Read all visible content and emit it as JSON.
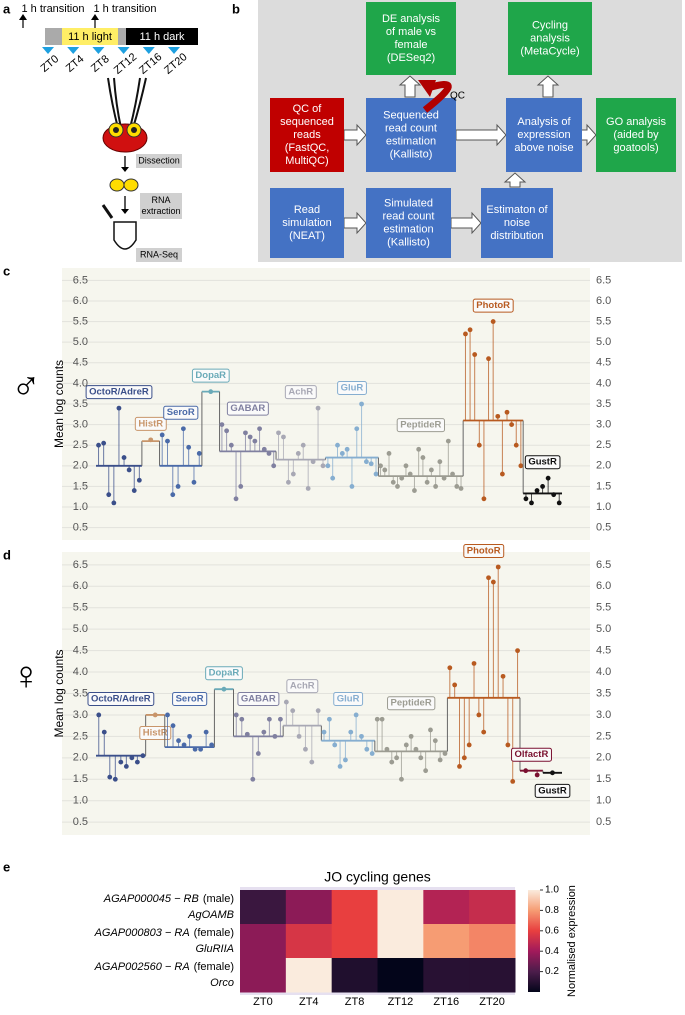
{
  "panel_labels": [
    "a",
    "b",
    "c",
    "d",
    "e"
  ],
  "diagram_a": {
    "transitions": [
      "1 h transition",
      "1 h transition"
    ],
    "light": "11 h light",
    "dark": "11 h dark",
    "timepoints": [
      "ZT0",
      "ZT4",
      "ZT8",
      "ZT12",
      "ZT16",
      "ZT20"
    ],
    "steps": [
      [
        "Dissection"
      ],
      [
        "RNA",
        "extraction"
      ],
      [
        "RNA-Seq"
      ]
    ]
  },
  "diagram_b": {
    "qc_label": "QC",
    "nodes": [
      {
        "lines": [
          "DE analysis",
          "of male vs",
          "female",
          "(DESeq2)"
        ],
        "color": "#1fa64a"
      },
      {
        "lines": [
          "Cycling",
          "analysis",
          "(MetaCycle)"
        ],
        "color": "#1fa64a"
      },
      {
        "lines": [
          "QC of",
          "sequenced",
          "reads",
          "(FastQC,",
          "MultiQC)"
        ],
        "color": "#c00000"
      },
      {
        "lines": [
          "Sequenced",
          "read count",
          "estimation",
          "(Kallisto)"
        ],
        "color": "#4472c4"
      },
      {
        "lines": [
          "Analysis of",
          "expression",
          "above noise"
        ],
        "color": "#4472c4"
      },
      {
        "lines": [
          "GO analysis",
          "(aided by",
          "goatools)"
        ],
        "color": "#1fa64a"
      },
      {
        "lines": [
          "Read",
          "simulation",
          "(NEAT)"
        ],
        "color": "#4472c4"
      },
      {
        "lines": [
          "Simulated",
          "read count",
          "estimation",
          "(Kallisto)"
        ],
        "color": "#4472c4"
      },
      {
        "lines": [
          "Estimaton of",
          "noise",
          "distribution"
        ],
        "color": "#4472c4"
      }
    ]
  },
  "chart_data": [
    {
      "type": "stem-groups",
      "symbol": "♂",
      "ylabel": "Mean log counts",
      "ylim": [
        0.2,
        6.8
      ],
      "grid": true,
      "yticks": [
        0.5,
        {
          "value": 1,
          "label": "1.0"
        },
        1.5,
        {
          "value": 2,
          "label": "2.0"
        },
        2.5,
        {
          "value": 3,
          "label": "3.0"
        },
        3.5,
        {
          "value": 4,
          "label": "4.0"
        },
        4.5,
        {
          "value": 5,
          "label": "5.0"
        },
        5.5,
        {
          "value": 6,
          "label": "6.0"
        },
        6.5
      ],
      "series": [
        {
          "name": "OctoR/AdreR",
          "color": "#3b4f8a",
          "mean": 2.0,
          "values": [
            2.5,
            2.55,
            1.3,
            1.1,
            3.4,
            2.2,
            1.9,
            1.4,
            1.65
          ]
        },
        {
          "name": "HistR",
          "color": "#c8956a",
          "mean": 2.6,
          "values": [
            2.63
          ]
        },
        {
          "name": "SeroR",
          "color": "#4a6aa8",
          "mean": 2.0,
          "values": [
            2.75,
            2.6,
            1.3,
            1.5,
            2.9,
            2.45,
            1.6,
            2.3
          ]
        },
        {
          "name": "DopaR",
          "color": "#6aaab8",
          "mean": 3.8,
          "values": [
            3.8
          ]
        },
        {
          "name": "GABAR",
          "color": "#8080a0",
          "mean": 2.35,
          "values": [
            3.0,
            2.85,
            2.5,
            1.2,
            1.5,
            2.8,
            2.7,
            2.6,
            2.9,
            2.4,
            2.3,
            2.0
          ]
        },
        {
          "name": "AchR",
          "color": "#a8a8b4",
          "mean": 2.15,
          "values": [
            2.8,
            2.7,
            1.6,
            1.8,
            2.3,
            2.5,
            1.45,
            2.1,
            3.4,
            2.0
          ]
        },
        {
          "name": "GluR",
          "color": "#86aed0",
          "mean": 2.2,
          "values": [
            2.0,
            1.7,
            2.5,
            2.3,
            2.4,
            1.5,
            2.9,
            3.5,
            2.1,
            2.05,
            1.8
          ]
        },
        {
          "name": "PeptideR",
          "color": "#9c9c92",
          "mean": 1.75,
          "values": [
            2.0,
            1.9,
            2.3,
            1.6,
            1.5,
            1.7,
            2.0,
            1.8,
            1.4,
            2.4,
            2.2,
            1.6,
            1.9,
            1.5,
            2.1,
            1.7,
            2.6,
            1.8,
            1.5,
            1.45
          ]
        },
        {
          "name": "PhotoR",
          "color": "#b85a20",
          "mean": 3.1,
          "values": [
            5.2,
            5.3,
            4.7,
            2.5,
            1.2,
            4.6,
            5.5,
            3.2,
            1.8,
            3.3,
            3.0,
            2.5,
            2.0
          ]
        },
        {
          "name": "GustR",
          "color": "#111111",
          "mean": 1.33,
          "values": [
            1.2,
            1.1,
            1.4,
            1.5,
            1.7,
            1.3,
            1.1
          ]
        }
      ]
    },
    {
      "type": "stem-groups",
      "symbol": "♀",
      "ylabel": "Mean log counts",
      "ylim": [
        0.2,
        6.8
      ],
      "grid": true,
      "yticks": [
        0.5,
        {
          "value": 1,
          "label": "1.0"
        },
        1.5,
        {
          "value": 2,
          "label": "2.0"
        },
        2.5,
        {
          "value": 3,
          "label": "3.0"
        },
        3.5,
        {
          "value": 4,
          "label": "4.0"
        },
        4.5,
        {
          "value": 5,
          "label": "5.0"
        },
        5.5,
        {
          "value": 6,
          "label": "6.0"
        },
        6.5
      ],
      "series": [
        {
          "name": "OctoR/AdreR",
          "color": "#3b4f8a",
          "mean": 2.05,
          "values": [
            3.0,
            2.6,
            1.55,
            1.5,
            1.9,
            1.8,
            2.0,
            1.9,
            2.05
          ]
        },
        {
          "name": "HistR",
          "color": "#c8956a",
          "mean": 3.0,
          "values": [
            3.0
          ]
        },
        {
          "name": "SeroR",
          "color": "#4a6aa8",
          "mean": 2.25,
          "values": [
            3.0,
            2.75,
            2.4,
            2.3,
            2.5,
            2.2,
            2.2,
            2.6,
            2.3
          ]
        },
        {
          "name": "DopaR",
          "color": "#6aaab8",
          "mean": 3.6,
          "values": [
            3.6
          ]
        },
        {
          "name": "GABAR",
          "color": "#8080a0",
          "mean": 2.5,
          "values": [
            3.0,
            2.9,
            2.55,
            1.5,
            2.1,
            2.6,
            2.9,
            2.5,
            2.9
          ]
        },
        {
          "name": "AchR",
          "color": "#a8a8b4",
          "mean": 2.75,
          "values": [
            3.3,
            3.1,
            2.5,
            2.2,
            1.9,
            3.1
          ]
        },
        {
          "name": "GluR",
          "color": "#86aed0",
          "mean": 2.4,
          "values": [
            2.6,
            2.9,
            2.3,
            1.8,
            1.95,
            2.6,
            3.0,
            2.5,
            2.2,
            2.1
          ]
        },
        {
          "name": "PeptideR",
          "color": "#9c9c92",
          "mean": 2.15,
          "values": [
            2.9,
            2.9,
            2.2,
            1.9,
            2.0,
            1.5,
            2.3,
            2.5,
            2.2,
            2.0,
            1.7,
            2.65,
            2.4,
            1.95,
            2.1
          ]
        },
        {
          "name": "PhotoR",
          "color": "#b85a20",
          "mean": 3.4,
          "values": [
            4.1,
            3.7,
            1.8,
            2.0,
            2.3,
            4.2,
            3.0,
            2.6,
            6.2,
            6.1,
            6.45,
            3.9,
            2.3,
            1.45,
            4.5
          ]
        },
        {
          "name": "OlfactR",
          "color": "#7a1030",
          "mean": 1.7,
          "values": [
            1.7,
            1.6
          ]
        },
        {
          "name": "GustR",
          "color": "#111111",
          "mean": 1.65,
          "values": [
            1.65
          ]
        }
      ]
    },
    {
      "type": "heatmap",
      "title": "JO cycling genes",
      "rows": [
        {
          "gene": "AGAP000045 − RB",
          "sex": "(male)",
          "name": "AgOAMB"
        },
        {
          "gene": "AGAP000803 − RA",
          "sex": "(female)",
          "name": "GluRIIA"
        },
        {
          "gene": "AGAP002560 − RA",
          "sex": "(female)",
          "name": "Orco"
        }
      ],
      "categories": [
        "ZT0",
        "ZT4",
        "ZT8",
        "ZT12",
        "ZT16",
        "ZT20"
      ],
      "values": [
        [
          0.15,
          0.35,
          0.6,
          1.0,
          0.45,
          0.5
        ],
        [
          0.35,
          0.55,
          0.6,
          1.0,
          0.8,
          0.75
        ],
        [
          0.35,
          1.0,
          0.08,
          0.0,
          0.1,
          0.1
        ]
      ],
      "colorbar_label": "Normalised expression",
      "clim": [
        0,
        1
      ],
      "cticks": [
        0.2,
        0.4,
        0.6,
        0.8,
        {
          "value": 1,
          "label": "1.0"
        }
      ],
      "colormap": [
        "#03051a",
        "#4c1d4b",
        "#a11a5b",
        "#e83f3f",
        "#f69c73",
        "#faebdd"
      ]
    }
  ]
}
